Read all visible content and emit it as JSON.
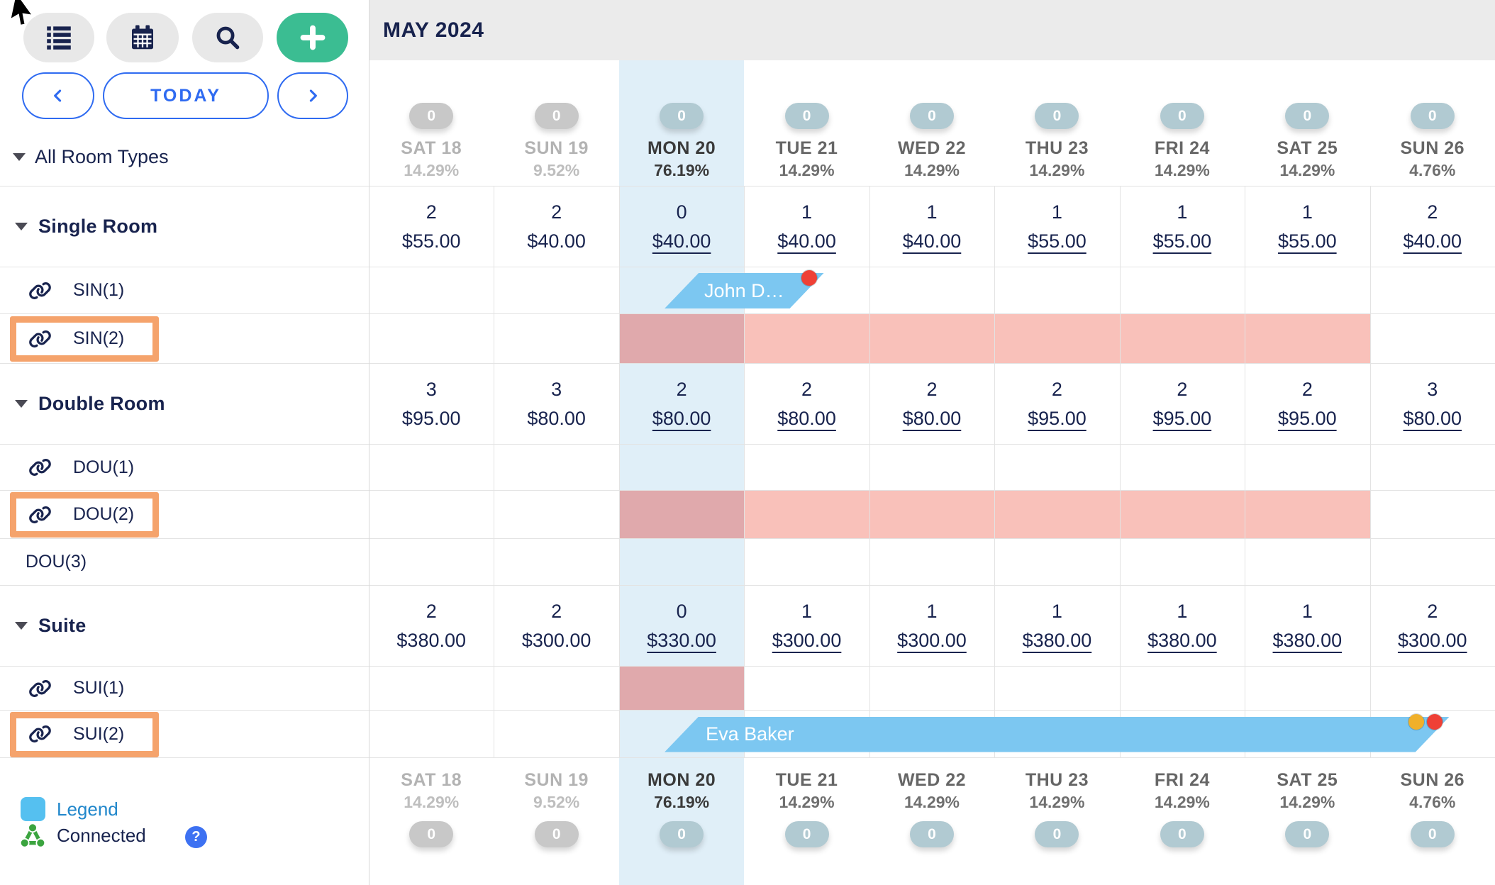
{
  "toolbar": {
    "list_icon": "list-icon",
    "calendar_icon": "calendar-icon",
    "search_icon": "search-icon",
    "add_icon": "plus-icon",
    "prev_icon": "chevron-left-icon",
    "next_icon": "chevron-right-icon",
    "today_label": "TODAY"
  },
  "sidebar": {
    "all_room_types_label": "All Room Types"
  },
  "calendar": {
    "month_title": "MAY 2024",
    "days": [
      {
        "label": "SAT 18",
        "occupancy": "14.29%",
        "badge": "0",
        "state": "past"
      },
      {
        "label": "SUN 19",
        "occupancy": "9.52%",
        "badge": "0",
        "state": "past"
      },
      {
        "label": "MON 20",
        "occupancy": "76.19%",
        "badge": "0",
        "state": "today"
      },
      {
        "label": "TUE 21",
        "occupancy": "14.29%",
        "badge": "0",
        "state": "future"
      },
      {
        "label": "WED 22",
        "occupancy": "14.29%",
        "badge": "0",
        "state": "future"
      },
      {
        "label": "THU 23",
        "occupancy": "14.29%",
        "badge": "0",
        "state": "future"
      },
      {
        "label": "FRI 24",
        "occupancy": "14.29%",
        "badge": "0",
        "state": "future"
      },
      {
        "label": "SAT 25",
        "occupancy": "14.29%",
        "badge": "0",
        "state": "future"
      },
      {
        "label": "SUN 26",
        "occupancy": "4.76%",
        "badge": "0",
        "state": "future"
      }
    ],
    "groups": [
      {
        "name": "Single Room",
        "cells": [
          {
            "count": "2",
            "price": "$55.00",
            "editable": false
          },
          {
            "count": "2",
            "price": "$40.00",
            "editable": false
          },
          {
            "count": "0",
            "price": "$40.00",
            "editable": true
          },
          {
            "count": "1",
            "price": "$40.00",
            "editable": true
          },
          {
            "count": "1",
            "price": "$40.00",
            "editable": true
          },
          {
            "count": "1",
            "price": "$55.00",
            "editable": true
          },
          {
            "count": "1",
            "price": "$55.00",
            "editable": true
          },
          {
            "count": "1",
            "price": "$55.00",
            "editable": true
          },
          {
            "count": "2",
            "price": "$40.00",
            "editable": true
          }
        ],
        "rooms": [
          {
            "name": "SIN(1)",
            "linked": true,
            "highlighted": false
          },
          {
            "name": "SIN(2)",
            "linked": true,
            "highlighted": true,
            "blocked": {
              "from_day": 2,
              "to_day": 7
            }
          }
        ]
      },
      {
        "name": "Double Room",
        "cells": [
          {
            "count": "3",
            "price": "$95.00",
            "editable": false
          },
          {
            "count": "3",
            "price": "$80.00",
            "editable": false
          },
          {
            "count": "2",
            "price": "$80.00",
            "editable": true
          },
          {
            "count": "2",
            "price": "$80.00",
            "editable": true
          },
          {
            "count": "2",
            "price": "$80.00",
            "editable": true
          },
          {
            "count": "2",
            "price": "$95.00",
            "editable": true
          },
          {
            "count": "2",
            "price": "$95.00",
            "editable": true
          },
          {
            "count": "2",
            "price": "$95.00",
            "editable": true
          },
          {
            "count": "3",
            "price": "$80.00",
            "editable": true
          }
        ],
        "rooms": [
          {
            "name": "DOU(1)",
            "linked": true,
            "highlighted": false
          },
          {
            "name": "DOU(2)",
            "linked": true,
            "highlighted": true,
            "blocked": {
              "from_day": 2,
              "to_day": 7
            }
          },
          {
            "name": "DOU(3)",
            "linked": false,
            "highlighted": false
          }
        ]
      },
      {
        "name": "Suite",
        "cells": [
          {
            "count": "2",
            "price": "$380.00",
            "editable": false
          },
          {
            "count": "2",
            "price": "$300.00",
            "editable": false
          },
          {
            "count": "0",
            "price": "$330.00",
            "editable": true
          },
          {
            "count": "1",
            "price": "$300.00",
            "editable": true
          },
          {
            "count": "1",
            "price": "$300.00",
            "editable": true
          },
          {
            "count": "1",
            "price": "$380.00",
            "editable": true
          },
          {
            "count": "1",
            "price": "$380.00",
            "editable": true
          },
          {
            "count": "1",
            "price": "$380.00",
            "editable": true
          },
          {
            "count": "2",
            "price": "$300.00",
            "editable": true
          }
        ],
        "rooms": [
          {
            "name": "SUI(1)",
            "linked": true,
            "highlighted": false,
            "blocked": {
              "from_day": 2,
              "to_day": 2
            }
          },
          {
            "name": "SUI(2)",
            "linked": true,
            "highlighted": true
          }
        ]
      }
    ],
    "bookings": [
      {
        "guest": "John D…",
        "room": "SIN(1)",
        "checkin_day": 2,
        "checkout_day": 3,
        "dots": [
          "red"
        ]
      },
      {
        "guest": "Eva Baker",
        "room": "SUI(2)",
        "checkin_day": 2,
        "checkout_day": 8,
        "dots": [
          "yellow",
          "red"
        ]
      }
    ]
  },
  "legend": {
    "legend_label": "Legend",
    "connected_label": "Connected",
    "help_label": "?"
  },
  "colors": {
    "accent_blue": "#2F6BF1",
    "accent_green": "#3BBD92",
    "navy_text": "#18234E",
    "today_column_highlight": "#E0EFF8",
    "booking_bar_blue": "#7CC7F1",
    "blocked_pink": "#F9C1BA",
    "blocked_pink_on_today": "#E0A9AC",
    "room_highlight_box_orange": "#F5A36C",
    "badge_past_gray": "#C8C8C8",
    "badge_active_bluegray": "#B1CAD2",
    "legend_swatch_blue": "#55C0F0",
    "red_dot": "#EF4036",
    "yellow_dot": "#F0B02A",
    "connected_green": "#3BA43F"
  }
}
